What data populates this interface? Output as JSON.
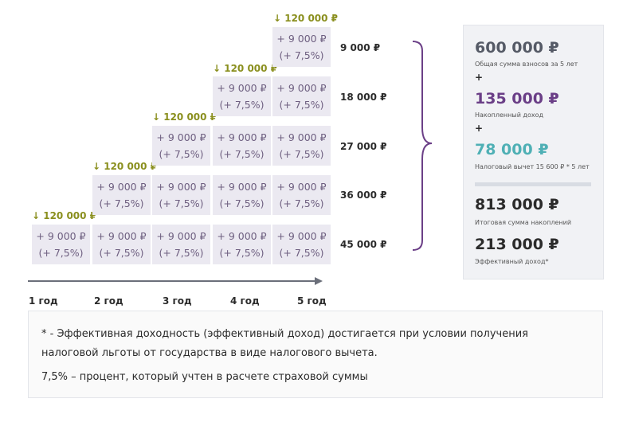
{
  "deposits": [
    "↓ 120 000 ₽",
    "↓ 120 000 ₽",
    "↓ 120 000 ₽",
    "↓ 120 000 ₽",
    "↓ 120 000 ₽"
  ],
  "cell": {
    "amount": "+ 9 000 ₽",
    "percent": "(+ 7,5%)"
  },
  "row_sums": [
    "9 000 ₽",
    "18 000 ₽",
    "27 000 ₽",
    "36 000 ₽",
    "45 000 ₽"
  ],
  "years": [
    "1 год",
    "2 год",
    "3 год",
    "4 год",
    "5 год"
  ],
  "summary": {
    "contributions": {
      "value": "600 000 ₽",
      "label": "Общая сумма взносов за 5 лет"
    },
    "plus1": "+",
    "income": {
      "value": "135 000 ₽",
      "label": "Накопленный доход"
    },
    "plus2": "+",
    "tax": {
      "value": "78 000 ₽",
      "label": "Налоговый вычет 15 600 ₽ * 5 лет"
    },
    "total": {
      "value": "813 000 ₽",
      "label": "Итоговая сумма накоплений"
    },
    "effective": {
      "value": "213 000 ₽",
      "label": "Эффективный доход*"
    }
  },
  "note": {
    "line1": "* - Эффективная доходность (эффективный доход) достигается при условии получения",
    "line2": "налоговой льготы от государства в виде налогового вычета.",
    "line3": "7,5% – процент, который учтен в расчете страховой суммы"
  },
  "colors": {
    "accent_purple": "#6b3f87",
    "accent_teal": "#4fb0b5",
    "deposit_olive": "#8a8f1e",
    "cell_bg": "#ebe9f1",
    "panel_bg": "#f1f2f5"
  }
}
